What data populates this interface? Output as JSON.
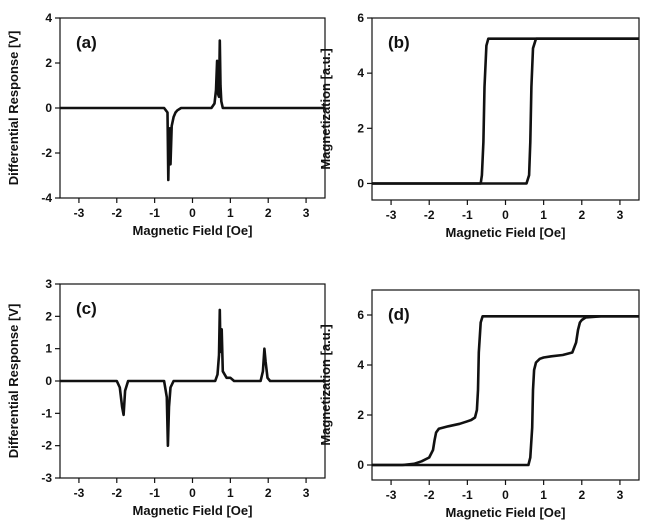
{
  "chart_data": [
    {
      "panel": "(a)",
      "type": "line",
      "title": "",
      "xlabel": "Magnetic Field [Oe]",
      "ylabel": "Differential Response [V]",
      "xlim": [
        -3.5,
        3.5
      ],
      "ylim": [
        -4,
        4
      ],
      "xticks": [
        -3,
        -2,
        -1,
        0,
        1,
        2,
        3
      ],
      "yticks": [
        -4,
        -2,
        0,
        2,
        4
      ],
      "legend": "none",
      "grid": false,
      "series": [
        {
          "x": [
            -3.5,
            -0.75,
            -0.66,
            -0.64,
            -0.62,
            -0.6,
            -0.58,
            -0.55,
            -0.5,
            -0.45,
            -0.4,
            -0.3,
            0.5,
            0.58,
            0.62,
            0.65,
            0.68,
            0.7,
            0.72,
            0.74,
            0.76,
            0.8,
            3.5
          ],
          "y": [
            0,
            0,
            -0.2,
            -3.2,
            -1.5,
            -0.9,
            -2.5,
            -0.8,
            -0.4,
            -0.2,
            -0.1,
            0,
            0,
            0.2,
            0.8,
            2.1,
            0.6,
            0.5,
            3.0,
            1.0,
            0.3,
            0,
            0
          ]
        }
      ]
    },
    {
      "panel": "(b)",
      "type": "line",
      "title": "",
      "xlabel": "Magnetic Field [Oe]",
      "ylabel": "Magnetization [a.u.]",
      "xlim": [
        -3.5,
        3.5
      ],
      "ylim": [
        -0.6,
        6
      ],
      "xticks": [
        -3,
        -2,
        -1,
        0,
        1,
        2,
        3
      ],
      "yticks": [
        0,
        2,
        4,
        6
      ],
      "legend": "none",
      "grid": false,
      "series": [
        {
          "x": [
            -3.5,
            0.55,
            0.62,
            0.65,
            0.68,
            0.72,
            0.8,
            3.5
          ],
          "y": [
            0,
            0,
            0.3,
            1.5,
            3.5,
            4.9,
            5.25,
            5.25
          ]
        },
        {
          "x": [
            3.5,
            -0.45,
            -0.5,
            -0.55,
            -0.58,
            -0.62,
            -0.65,
            -3.5
          ],
          "y": [
            5.25,
            5.25,
            5.0,
            3.5,
            1.5,
            0.3,
            0,
            0
          ]
        }
      ]
    },
    {
      "panel": "(c)",
      "type": "line",
      "title": "",
      "xlabel": "Magnetic Field [Oe]",
      "ylabel": "Differential Response [V]",
      "xlim": [
        -3.5,
        3.5
      ],
      "ylim": [
        -3,
        3
      ],
      "xticks": [
        -3,
        -2,
        -1,
        0,
        1,
        2,
        3
      ],
      "yticks": [
        -3,
        -2,
        -1,
        0,
        1,
        2,
        3
      ],
      "legend": "none",
      "grid": false,
      "series": [
        {
          "x": [
            -3.5,
            -2.0,
            -1.92,
            -1.86,
            -1.82,
            -1.78,
            -1.7,
            -0.75,
            -0.68,
            -0.65,
            -0.62,
            -0.58,
            -0.5,
            0.6,
            0.66,
            0.7,
            0.72,
            0.74,
            0.77,
            0.8,
            0.9,
            1.0,
            1.1,
            1.8,
            1.86,
            1.9,
            1.93,
            1.98,
            2.05,
            3.5
          ],
          "y": [
            0,
            0,
            -0.2,
            -0.8,
            -1.05,
            -0.3,
            0,
            0,
            -0.5,
            -2.0,
            -0.8,
            -0.2,
            0,
            0,
            0.2,
            0.8,
            2.2,
            0.9,
            1.6,
            0.3,
            0.1,
            0.1,
            0,
            0,
            0.3,
            1.0,
            0.6,
            0.1,
            0,
            0
          ]
        }
      ]
    },
    {
      "panel": "(d)",
      "type": "line",
      "title": "",
      "xlabel": "Magnetic Field [Oe]",
      "ylabel": "Magnetization [a.u.]",
      "xlim": [
        -3.5,
        3.5
      ],
      "ylim": [
        -0.6,
        7
      ],
      "xticks": [
        -3,
        -2,
        -1,
        0,
        1,
        2,
        3
      ],
      "yticks": [
        0,
        2,
        4,
        6
      ],
      "legend": "none",
      "grid": false,
      "series": [
        {
          "x": [
            -3.5,
            0.6,
            0.65,
            0.7,
            0.72,
            0.75,
            0.8,
            0.9,
            1.0,
            1.2,
            1.5,
            1.75,
            1.85,
            1.9,
            1.95,
            2.0,
            2.1,
            2.5,
            3.0,
            3.5
          ],
          "y": [
            0,
            0,
            0.3,
            1.5,
            3.0,
            3.8,
            4.1,
            4.25,
            4.3,
            4.35,
            4.4,
            4.5,
            4.9,
            5.4,
            5.7,
            5.8,
            5.9,
            5.95,
            5.95,
            5.95
          ]
        },
        {
          "x": [
            3.5,
            -0.6,
            -0.65,
            -0.7,
            -0.72,
            -0.75,
            -0.8,
            -0.9,
            -1.0,
            -1.2,
            -1.5,
            -1.75,
            -1.82,
            -1.86,
            -1.9,
            -2.0,
            -2.2,
            -2.4,
            -2.7,
            -3.5
          ],
          "y": [
            5.95,
            5.95,
            5.7,
            4.5,
            3.0,
            2.2,
            1.9,
            1.8,
            1.75,
            1.65,
            1.55,
            1.45,
            1.3,
            1.0,
            0.6,
            0.3,
            0.15,
            0.05,
            0,
            0
          ]
        }
      ]
    }
  ]
}
